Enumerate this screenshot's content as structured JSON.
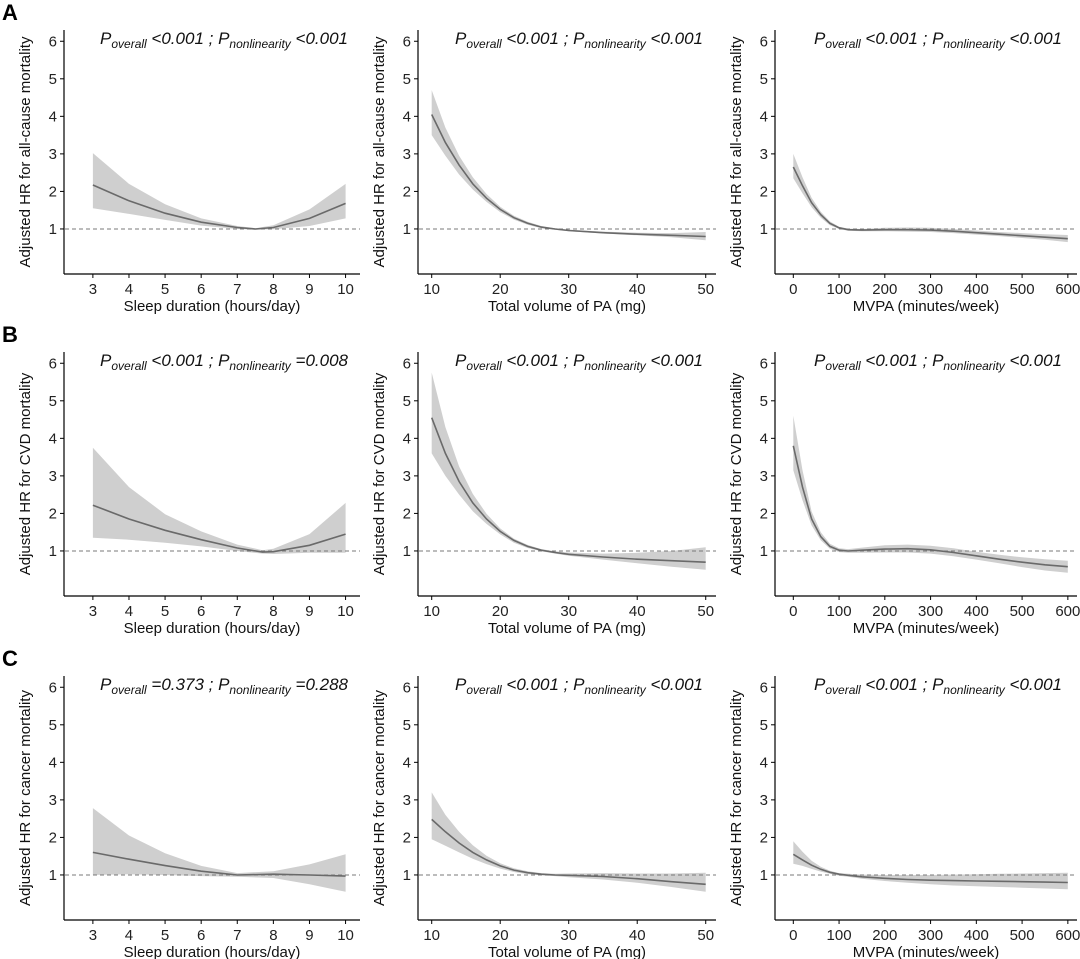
{
  "chart_data": {
    "type": "line",
    "rows": [
      {
        "label": "A",
        "ylabel": "Adjusted HR for all-cause mortality",
        "panels": [
          {
            "p_overall": "<0.001",
            "p_nonlinearity": "<0.001",
            "xlabel": "Sleep duration (hours/day)",
            "xticks": [
              3,
              4,
              5,
              6,
              7,
              8,
              9,
              10
            ],
            "xlim": [
              2.2,
              10.4
            ],
            "x": [
              3,
              4,
              5,
              6,
              7,
              7.5,
              8,
              9,
              10
            ],
            "hr": [
              2.17,
              1.75,
              1.42,
              1.18,
              1.04,
              1.0,
              1.04,
              1.28,
              1.68
            ],
            "lower": [
              1.55,
              1.4,
              1.24,
              1.09,
              1.0,
              0.98,
              0.99,
              1.08,
              1.28
            ],
            "upper": [
              3.02,
              2.2,
              1.66,
              1.28,
              1.08,
              1.02,
              1.1,
              1.52,
              2.2
            ]
          },
          {
            "p_overall": "<0.001",
            "p_nonlinearity": "<0.001",
            "xlabel": "Total volume of PA (mg)",
            "xticks": [
              10,
              20,
              30,
              40,
              50
            ],
            "xlim": [
              8,
              51.5
            ],
            "x": [
              10,
              12,
              14,
              16,
              18,
              20,
              22,
              24,
              26,
              28,
              30,
              35,
              40,
              45,
              50
            ],
            "hr": [
              4.05,
              3.3,
              2.7,
              2.2,
              1.82,
              1.52,
              1.3,
              1.15,
              1.05,
              1.0,
              0.96,
              0.9,
              0.86,
              0.83,
              0.8
            ],
            "lower": [
              3.5,
              2.95,
              2.45,
              2.05,
              1.72,
              1.45,
              1.25,
              1.11,
              1.02,
              0.98,
              0.94,
              0.88,
              0.83,
              0.78,
              0.7
            ],
            "upper": [
              4.7,
              3.7,
              2.95,
              2.38,
              1.93,
              1.59,
              1.35,
              1.19,
              1.08,
              1.02,
              0.98,
              0.93,
              0.9,
              0.89,
              0.92
            ]
          },
          {
            "p_overall": "<0.001",
            "p_nonlinearity": "<0.001",
            "xlabel": "MVPA (minutes/week)",
            "xticks": [
              0,
              100,
              200,
              300,
              400,
              500,
              600
            ],
            "xlim": [
              -40,
              620
            ],
            "x": [
              0,
              20,
              40,
              60,
              80,
              100,
              120,
              150,
              200,
              250,
              300,
              350,
              400,
              450,
              500,
              550,
              600
            ],
            "hr": [
              2.65,
              2.15,
              1.7,
              1.38,
              1.15,
              1.03,
              0.98,
              0.97,
              0.98,
              0.98,
              0.97,
              0.94,
              0.9,
              0.86,
              0.82,
              0.78,
              0.74
            ],
            "lower": [
              2.35,
              1.95,
              1.58,
              1.3,
              1.1,
              1.0,
              0.95,
              0.94,
              0.94,
              0.93,
              0.92,
              0.89,
              0.85,
              0.81,
              0.76,
              0.71,
              0.65
            ],
            "upper": [
              3.0,
              2.38,
              1.83,
              1.46,
              1.2,
              1.06,
              1.01,
              1.0,
              1.03,
              1.04,
              1.03,
              1.0,
              0.96,
              0.92,
              0.89,
              0.86,
              0.84
            ]
          }
        ]
      },
      {
        "label": "B",
        "ylabel": "Adjusted HR for CVD mortality",
        "panels": [
          {
            "p_overall": "<0.001",
            "p_nonlinearity": "=0.008",
            "xlabel": "Sleep duration (hours/day)",
            "xticks": [
              3,
              4,
              5,
              6,
              7,
              8,
              9,
              10
            ],
            "xlim": [
              2.2,
              10.4
            ],
            "x": [
              3,
              4,
              5,
              6,
              7,
              7.7,
              8,
              9,
              10
            ],
            "hr": [
              2.22,
              1.85,
              1.55,
              1.3,
              1.08,
              0.97,
              0.98,
              1.15,
              1.45
            ],
            "lower": [
              1.35,
              1.3,
              1.22,
              1.12,
              1.0,
              0.93,
              0.92,
              0.95,
              0.95
            ],
            "upper": [
              3.75,
              2.7,
              1.98,
              1.52,
              1.17,
              1.02,
              1.06,
              1.45,
              2.28
            ]
          },
          {
            "p_overall": "<0.001",
            "p_nonlinearity": "<0.001",
            "xlabel": "Total volume of PA (mg)",
            "xticks": [
              10,
              20,
              30,
              40,
              50
            ],
            "xlim": [
              8,
              51.5
            ],
            "x": [
              10,
              12,
              14,
              16,
              18,
              20,
              22,
              24,
              26,
              28,
              30,
              35,
              40,
              45,
              50
            ],
            "hr": [
              4.55,
              3.6,
              2.85,
              2.28,
              1.85,
              1.52,
              1.28,
              1.12,
              1.02,
              0.96,
              0.91,
              0.84,
              0.78,
              0.74,
              0.7
            ],
            "lower": [
              3.6,
              3.0,
              2.5,
              2.06,
              1.72,
              1.44,
              1.22,
              1.08,
              0.99,
              0.93,
              0.87,
              0.77,
              0.67,
              0.58,
              0.5
            ],
            "upper": [
              5.75,
              4.3,
              3.25,
              2.52,
              1.99,
              1.6,
              1.33,
              1.16,
              1.05,
              0.99,
              0.96,
              0.93,
              0.95,
              1.0,
              1.1
            ]
          },
          {
            "p_overall": "<0.001",
            "p_nonlinearity": "<0.001",
            "xlabel": "MVPA (minutes/week)",
            "xticks": [
              0,
              100,
              200,
              300,
              400,
              500,
              600
            ],
            "xlim": [
              -40,
              620
            ],
            "x": [
              0,
              20,
              40,
              60,
              80,
              100,
              120,
              150,
              200,
              250,
              300,
              350,
              400,
              450,
              500,
              550,
              600
            ],
            "hr": [
              3.8,
              2.7,
              1.85,
              1.38,
              1.12,
              1.02,
              1.0,
              1.02,
              1.05,
              1.06,
              1.03,
              0.96,
              0.87,
              0.78,
              0.7,
              0.63,
              0.58
            ],
            "lower": [
              3.15,
              2.35,
              1.68,
              1.28,
              1.06,
              0.97,
              0.95,
              0.95,
              0.96,
              0.96,
              0.93,
              0.86,
              0.77,
              0.67,
              0.57,
              0.48,
              0.42
            ],
            "upper": [
              4.6,
              3.15,
              2.05,
              1.5,
              1.19,
              1.07,
              1.05,
              1.09,
              1.15,
              1.17,
              1.14,
              1.07,
              0.98,
              0.9,
              0.83,
              0.78,
              0.74
            ]
          }
        ]
      },
      {
        "label": "C",
        "ylabel": "Adjusted HR for cancer mortality",
        "panels": [
          {
            "p_overall": "=0.373",
            "p_nonlinearity": "=0.288",
            "xlabel": "Sleep duration (hours/day)",
            "xticks": [
              3,
              4,
              5,
              6,
              7,
              8,
              9,
              10
            ],
            "xlim": [
              2.2,
              10.4
            ],
            "x": [
              3,
              4,
              5,
              6,
              7,
              8,
              9,
              10
            ],
            "hr": [
              1.6,
              1.42,
              1.25,
              1.1,
              1.0,
              1.02,
              1.0,
              0.97
            ],
            "lower": [
              1.0,
              1.02,
              1.0,
              0.97,
              0.95,
              0.92,
              0.75,
              0.55
            ],
            "upper": [
              2.78,
              2.05,
              1.58,
              1.24,
              1.05,
              1.1,
              1.28,
              1.55
            ]
          },
          {
            "p_overall": "<0.001",
            "p_nonlinearity": "<0.001",
            "xlabel": "Total volume of PA (mg)",
            "xticks": [
              10,
              20,
              30,
              40,
              50
            ],
            "xlim": [
              8,
              51.5
            ],
            "x": [
              10,
              12,
              14,
              16,
              18,
              20,
              22,
              24,
              26,
              28,
              30,
              35,
              40,
              45,
              50
            ],
            "hr": [
              2.48,
              2.15,
              1.85,
              1.6,
              1.4,
              1.24,
              1.13,
              1.06,
              1.02,
              1.0,
              0.99,
              0.96,
              0.9,
              0.82,
              0.75
            ],
            "lower": [
              1.95,
              1.78,
              1.6,
              1.43,
              1.29,
              1.17,
              1.08,
              1.02,
              0.99,
              0.97,
              0.94,
              0.88,
              0.79,
              0.68,
              0.55
            ],
            "upper": [
              3.2,
              2.6,
              2.15,
              1.79,
              1.51,
              1.31,
              1.18,
              1.1,
              1.05,
              1.03,
              1.04,
              1.05,
              1.04,
              1.04,
              1.06
            ]
          },
          {
            "p_overall": "<0.001",
            "p_nonlinearity": "<0.001",
            "xlabel": "MVPA (minutes/week)",
            "xticks": [
              0,
              100,
              200,
              300,
              400,
              500,
              600
            ],
            "xlim": [
              -40,
              620
            ],
            "x": [
              0,
              20,
              40,
              60,
              80,
              100,
              120,
              150,
              200,
              250,
              300,
              350,
              400,
              450,
              500,
              550,
              600
            ],
            "hr": [
              1.55,
              1.4,
              1.26,
              1.15,
              1.07,
              1.02,
              0.99,
              0.95,
              0.91,
              0.88,
              0.86,
              0.85,
              0.84,
              0.83,
              0.82,
              0.81,
              0.8
            ],
            "lower": [
              1.3,
              1.24,
              1.16,
              1.09,
              1.03,
              0.98,
              0.95,
              0.9,
              0.84,
              0.79,
              0.75,
              0.72,
              0.7,
              0.68,
              0.66,
              0.64,
              0.62
            ],
            "upper": [
              1.9,
              1.62,
              1.38,
              1.22,
              1.11,
              1.05,
              1.03,
              1.01,
              1.0,
              1.0,
              1.0,
              1.01,
              1.02,
              1.03,
              1.04,
              1.05,
              1.06
            ]
          }
        ]
      }
    ],
    "yticks": [
      1,
      2,
      3,
      4,
      5,
      6
    ],
    "ylim": [
      -0.2,
      6.3
    ],
    "reference_line": 1
  }
}
